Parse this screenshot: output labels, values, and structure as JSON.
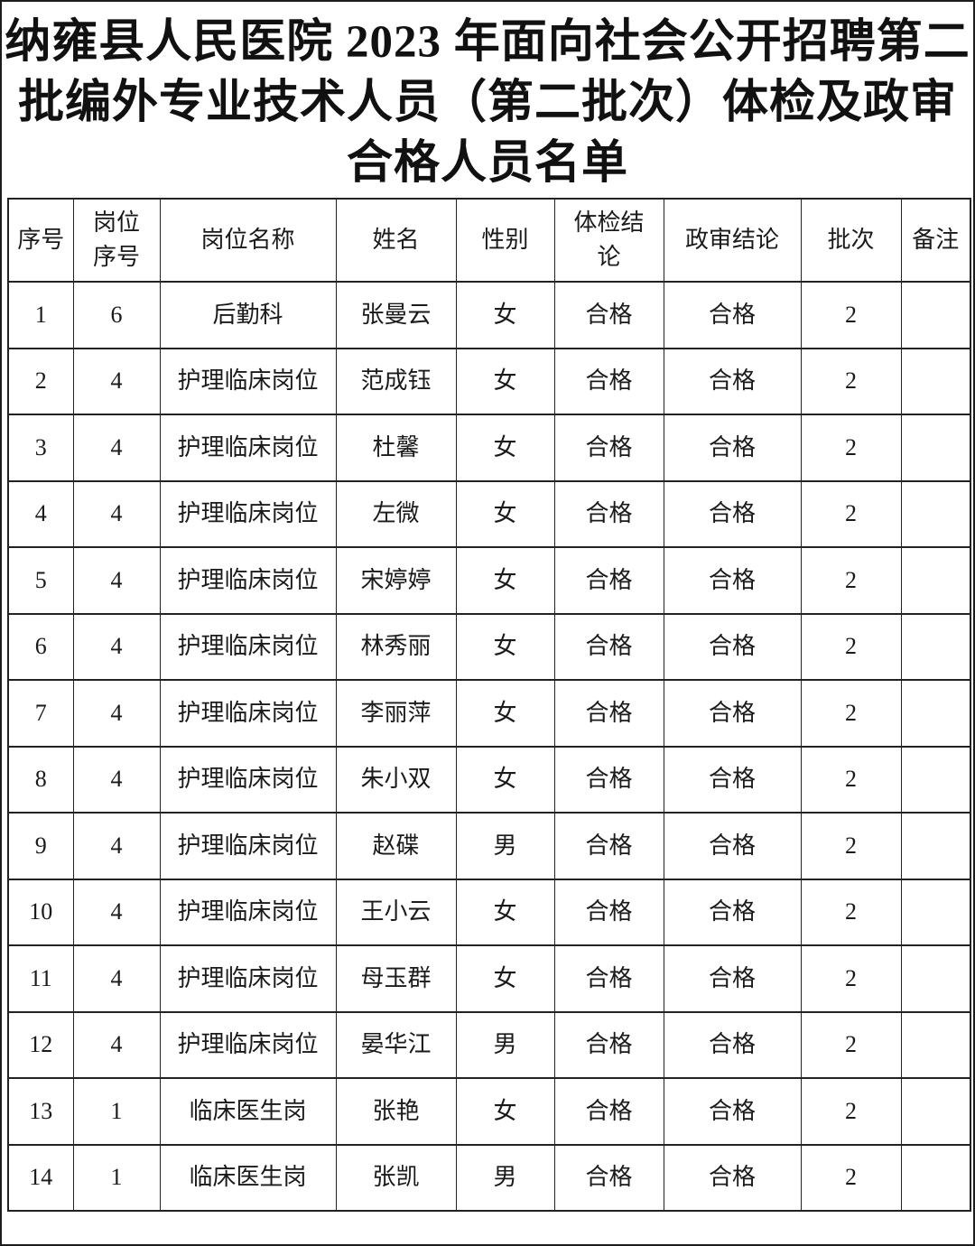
{
  "page": {
    "background": "#ffffff",
    "border_color": "#1c1c1c",
    "text_color": "#1a1a1a"
  },
  "title": "纳雍县人民医院 2023 年面向社会公开招聘第二\n批编外专业技术人员（第二批次）体检及政审\n合格人员名单",
  "table": {
    "columns": [
      {
        "key": "seq",
        "label": "序号"
      },
      {
        "key": "post_seq",
        "label": "岗位\n序号"
      },
      {
        "key": "post_name",
        "label": "岗位名称"
      },
      {
        "key": "name",
        "label": "姓名"
      },
      {
        "key": "gender",
        "label": "性别"
      },
      {
        "key": "physical_result",
        "label": "体检结\n论"
      },
      {
        "key": "political_result",
        "label": "政审结论"
      },
      {
        "key": "batch",
        "label": "批次"
      },
      {
        "key": "remark",
        "label": "备注"
      }
    ],
    "rows": [
      {
        "seq": "1",
        "post_seq": "6",
        "post_name": "后勤科",
        "name": "张曼云",
        "gender": "女",
        "physical_result": "合格",
        "political_result": "合格",
        "batch": "2",
        "remark": ""
      },
      {
        "seq": "2",
        "post_seq": "4",
        "post_name": "护理临床岗位",
        "name": "范成钰",
        "gender": "女",
        "physical_result": "合格",
        "political_result": "合格",
        "batch": "2",
        "remark": ""
      },
      {
        "seq": "3",
        "post_seq": "4",
        "post_name": "护理临床岗位",
        "name": "杜馨",
        "gender": "女",
        "physical_result": "合格",
        "political_result": "合格",
        "batch": "2",
        "remark": ""
      },
      {
        "seq": "4",
        "post_seq": "4",
        "post_name": "护理临床岗位",
        "name": "左微",
        "gender": "女",
        "physical_result": "合格",
        "political_result": "合格",
        "batch": "2",
        "remark": ""
      },
      {
        "seq": "5",
        "post_seq": "4",
        "post_name": "护理临床岗位",
        "name": "宋婷婷",
        "gender": "女",
        "physical_result": "合格",
        "political_result": "合格",
        "batch": "2",
        "remark": ""
      },
      {
        "seq": "6",
        "post_seq": "4",
        "post_name": "护理临床岗位",
        "name": "林秀丽",
        "gender": "女",
        "physical_result": "合格",
        "political_result": "合格",
        "batch": "2",
        "remark": ""
      },
      {
        "seq": "7",
        "post_seq": "4",
        "post_name": "护理临床岗位",
        "name": "李丽萍",
        "gender": "女",
        "physical_result": "合格",
        "political_result": "合格",
        "batch": "2",
        "remark": ""
      },
      {
        "seq": "8",
        "post_seq": "4",
        "post_name": "护理临床岗位",
        "name": "朱小双",
        "gender": "女",
        "physical_result": "合格",
        "political_result": "合格",
        "batch": "2",
        "remark": ""
      },
      {
        "seq": "9",
        "post_seq": "4",
        "post_name": "护理临床岗位",
        "name": "赵碟",
        "gender": "男",
        "physical_result": "合格",
        "political_result": "合格",
        "batch": "2",
        "remark": ""
      },
      {
        "seq": "10",
        "post_seq": "4",
        "post_name": "护理临床岗位",
        "name": "王小云",
        "gender": "女",
        "physical_result": "合格",
        "political_result": "合格",
        "batch": "2",
        "remark": ""
      },
      {
        "seq": "11",
        "post_seq": "4",
        "post_name": "护理临床岗位",
        "name": "母玉群",
        "gender": "女",
        "physical_result": "合格",
        "political_result": "合格",
        "batch": "2",
        "remark": ""
      },
      {
        "seq": "12",
        "post_seq": "4",
        "post_name": "护理临床岗位",
        "name": "晏华江",
        "gender": "男",
        "physical_result": "合格",
        "political_result": "合格",
        "batch": "2",
        "remark": ""
      },
      {
        "seq": "13",
        "post_seq": "1",
        "post_name": "临床医生岗",
        "name": "张艳",
        "gender": "女",
        "physical_result": "合格",
        "political_result": "合格",
        "batch": "2",
        "remark": ""
      },
      {
        "seq": "14",
        "post_seq": "1",
        "post_name": "临床医生岗",
        "name": "张凯",
        "gender": "男",
        "physical_result": "合格",
        "political_result": "合格",
        "batch": "2",
        "remark": ""
      }
    ]
  }
}
